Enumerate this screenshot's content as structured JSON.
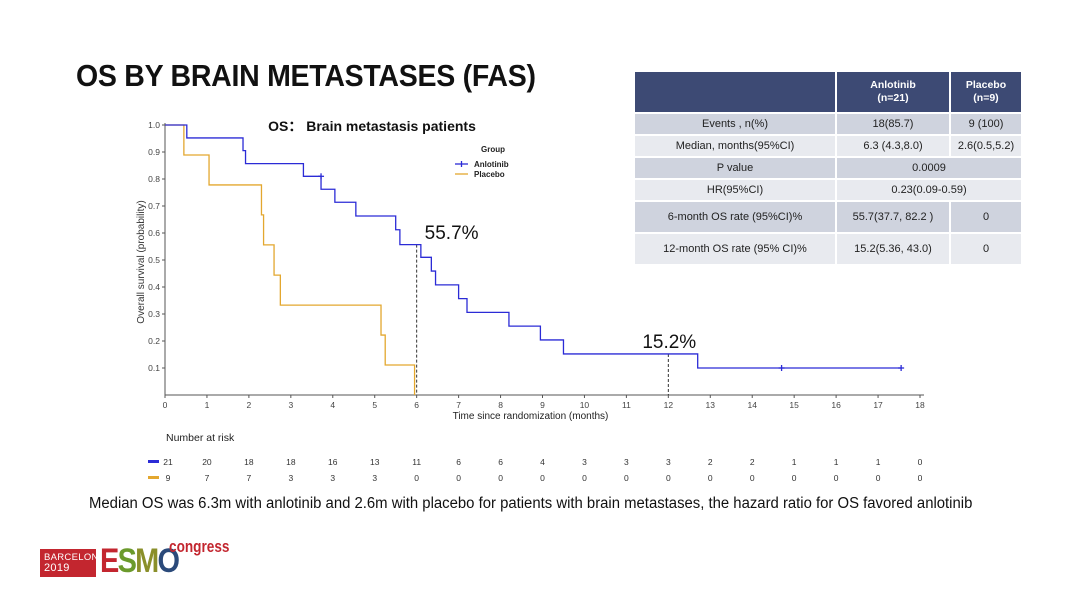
{
  "slide": {
    "title": "OS BY BRAIN METASTASES (FAS)",
    "summary": "Median OS was 6.3m with anlotinib and 2.6m with placebo for patients with brain metastases, the hazard ratio for OS favored anlotinib"
  },
  "table": {
    "headers": [
      "",
      "Anlotinib\n(n=21)",
      "Placebo\n(n=9)"
    ],
    "header_lines": [
      [
        "",
        ""
      ],
      [
        "Anlotinib",
        "(n=21)"
      ],
      [
        "Placebo",
        "(n=9)"
      ]
    ],
    "rows": [
      {
        "label": "Events , n(%)",
        "anlotinib": "18(85.7)",
        "placebo": "9 (100)"
      },
      {
        "label": "Median, months(95%CI)",
        "anlotinib": "6.3 (4.3,8.0)",
        "placebo": "2.6(0.5,5.2)"
      },
      {
        "label": "P value",
        "merged": "0.0009"
      },
      {
        "label": "HR(95%CI)",
        "merged": "0.23(0.09-0.59)"
      },
      {
        "label": "6-month OS rate (95%CI)%",
        "anlotinib": "55.7(37.7, 82.2 )",
        "placebo": "0"
      },
      {
        "label": "12-month OS rate (95% CI)%",
        "anlotinib": "15.2(5.36, 43.0)",
        "placebo": "0"
      }
    ]
  },
  "logo": {
    "city": "BARCELONA",
    "year": "2019",
    "letters": [
      "E",
      "S",
      "M",
      "O"
    ],
    "suffix": "congress",
    "letter_colors": [
      "#c3262f",
      "#6b9a2c",
      "#8a8f2a",
      "#2b4a7a"
    ]
  },
  "chart_data": {
    "type": "line",
    "subtype": "kaplan-meier-step",
    "title": "OS： Brain metastasis patients",
    "xlabel": "Time since randomization (months)",
    "ylabel": "Overall survival (probability)",
    "xlim": [
      0,
      18
    ],
    "ylim": [
      0,
      1.0
    ],
    "xticks": [
      "0",
      "1",
      "2",
      "3",
      "4",
      "5",
      "6",
      "7",
      "8",
      "9",
      "10",
      "11",
      "12",
      "13",
      "14",
      "15",
      "16",
      "17",
      "18"
    ],
    "yticks": [
      "0.1",
      "0.2",
      "0.3",
      "0.4",
      "0.5",
      "0.6",
      "0.7",
      "0.8",
      "0.9",
      "1.0"
    ],
    "grid": false,
    "legend": {
      "title": "Group",
      "position": "top-right"
    },
    "series": [
      {
        "name": "Anlotinib",
        "color": "#2b2bd6",
        "steps": [
          [
            0,
            1.0
          ],
          [
            0.52,
            0.952
          ],
          [
            1.86,
            0.905
          ],
          [
            1.92,
            0.857
          ],
          [
            3.3,
            0.81
          ],
          [
            3.72,
            0.762
          ],
          [
            4.05,
            0.714
          ],
          [
            4.55,
            0.663
          ],
          [
            5.5,
            0.612
          ],
          [
            5.6,
            0.557
          ],
          [
            6.1,
            0.51
          ],
          [
            6.35,
            0.459
          ],
          [
            6.45,
            0.408
          ],
          [
            7.0,
            0.357
          ],
          [
            7.2,
            0.306
          ],
          [
            8.2,
            0.255
          ],
          [
            8.95,
            0.204
          ],
          [
            9.5,
            0.152
          ],
          [
            12.7,
            0.1
          ],
          [
            17.55,
            0.1
          ]
        ],
        "censored": [
          [
            3.72,
            0.81
          ],
          [
            14.7,
            0.1
          ],
          [
            17.55,
            0.1
          ]
        ]
      },
      {
        "name": "Placebo",
        "color": "#e3a72f",
        "steps": [
          [
            0,
            1.0
          ],
          [
            0.45,
            0.889
          ],
          [
            1.05,
            0.778
          ],
          [
            2.3,
            0.667
          ],
          [
            2.35,
            0.556
          ],
          [
            2.6,
            0.444
          ],
          [
            2.75,
            0.333
          ],
          [
            5.15,
            0.222
          ],
          [
            5.25,
            0.111
          ],
          [
            5.95,
            0.0
          ]
        ],
        "censored": []
      }
    ],
    "annotations": [
      {
        "text": "55.7%",
        "x": 6,
        "y": 0.557
      },
      {
        "text": "15.2%",
        "x": 12,
        "y": 0.152
      }
    ],
    "risk_table": {
      "title": "Number at risk",
      "times": [
        0,
        1,
        2,
        3,
        4,
        5,
        6,
        7,
        8,
        9,
        10,
        11,
        12,
        13,
        14,
        15,
        16,
        17,
        18
      ],
      "rows": [
        {
          "name": "Anlotinib",
          "color": "#2b2bd6",
          "values": [
            21,
            20,
            18,
            18,
            16,
            13,
            11,
            6,
            6,
            4,
            3,
            3,
            3,
            2,
            2,
            1,
            1,
            1,
            0
          ]
        },
        {
          "name": "Placebo",
          "color": "#e3a72f",
          "values": [
            9,
            7,
            7,
            3,
            3,
            3,
            0,
            0,
            0,
            0,
            0,
            0,
            0,
            0,
            0,
            0,
            0,
            0,
            0
          ]
        }
      ]
    }
  }
}
